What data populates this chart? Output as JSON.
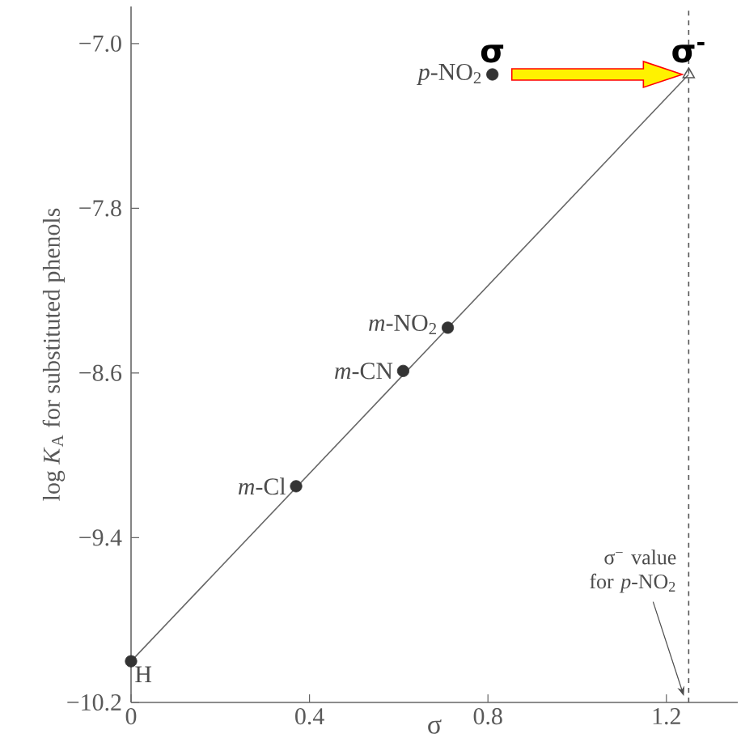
{
  "chart_data": {
    "type": "scatter",
    "xlabel": "σ",
    "ylabel": "log *K*$_{A}$ for substituted phenols",
    "xlim": [
      0,
      1.36
    ],
    "ylim": [
      -10.2,
      -6.82
    ],
    "xticks": [
      0,
      0.4,
      0.8,
      1.2
    ],
    "yticks": [
      {
        "value": -7.0,
        "label": "−7.0"
      },
      {
        "value": -7.8,
        "label": "−7.8"
      },
      {
        "value": -8.6,
        "label": "−8.6"
      },
      {
        "value": -9.4,
        "label": "−9.4"
      },
      {
        "value": -10.2,
        "label": "−10.2"
      }
    ],
    "series": [
      {
        "type": "line",
        "color": "#666666",
        "x": [
          0,
          1.25
        ],
        "values": [
          -10.0,
          -7.15
        ],
        "marker": "none"
      },
      {
        "color": "#333333",
        "x": [
          0,
          0.37,
          0.61,
          0.71,
          0.81
        ],
        "values": [
          -10.0,
          -9.15,
          -8.59,
          -8.38,
          -7.15
        ],
        "marker": "circle"
      },
      {
        "color": "#555555",
        "x": [
          1.25
        ],
        "values": [
          -7.15
        ],
        "marker": "triangle"
      }
    ],
    "ref_lines": [
      {
        "axis": "x",
        "value": 1.25,
        "label": "σ$^{−}$ value for *p*-NO$_{2}$",
        "color": "#555555",
        "line_style": "dashed"
      }
    ],
    "annotations": [
      {
        "text": "H",
        "x": 0,
        "y": -10.0
      },
      {
        "text": "*m*-Cl",
        "x": 0.37,
        "y": -9.15
      },
      {
        "text": "*m*-CN",
        "x": 0.61,
        "y": -8.59
      },
      {
        "text": "*m*-NO$_{2}$",
        "x": 0.71,
        "y": -8.38
      },
      {
        "text": "*p*-NO$_{2}$",
        "x": 0.81,
        "y": -7.15
      },
      {
        "text": "σ",
        "x": 0.81,
        "y": -7.15
      },
      {
        "text": "σ$^{-}$",
        "x": 1.25,
        "y": -7.15
      }
    ]
  }
}
